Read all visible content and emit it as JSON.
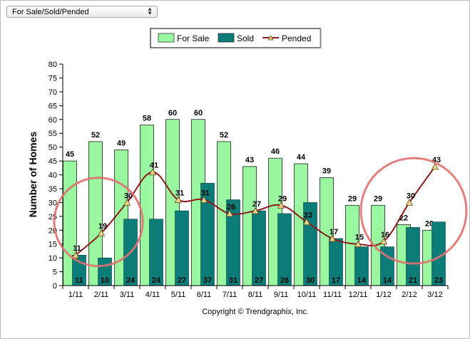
{
  "selector": {
    "value": "For Sale/Sold/Pended",
    "arrows": "▲▼"
  },
  "copyright": "Copyright © Trendgraphix, Inc.",
  "chart_data": {
    "type": "bar",
    "categories": [
      "1/11",
      "2/11",
      "3/11",
      "4/11",
      "5/11",
      "6/11",
      "7/11",
      "8/11",
      "9/11",
      "10/11",
      "11/11",
      "12/11",
      "1/12",
      "2/12",
      "3/12"
    ],
    "series": [
      {
        "name": "For Sale",
        "type": "bar",
        "color": "#99f7a0",
        "values": [
          45,
          52,
          49,
          58,
          60,
          60,
          52,
          43,
          46,
          44,
          39,
          29,
          29,
          22,
          20
        ]
      },
      {
        "name": "Sold",
        "type": "bar",
        "color": "#0b7c78",
        "values": [
          11,
          10,
          24,
          24,
          27,
          37,
          31,
          27,
          26,
          30,
          17,
          14,
          14,
          21,
          23
        ]
      },
      {
        "name": "Pended",
        "type": "line",
        "color": "#8b1c1c",
        "values": [
          11,
          19,
          30,
          41,
          31,
          31,
          26,
          27,
          29,
          23,
          17,
          15,
          16,
          30,
          43
        ]
      }
    ],
    "ylabel": "Number of Homes",
    "xlabel": "",
    "ylim": [
      0,
      80
    ],
    "yticks": [
      0,
      5,
      10,
      15,
      20,
      25,
      30,
      35,
      40,
      45,
      50,
      55,
      60,
      65,
      70,
      75,
      80
    ],
    "legend": "top-center",
    "grid": false,
    "annotations": [
      {
        "shape": "circle",
        "color": "#e07070",
        "center": [
          "2/11",
          23
        ]
      },
      {
        "shape": "circle",
        "color": "#e07070",
        "center": [
          "2/12",
          27
        ]
      }
    ]
  }
}
